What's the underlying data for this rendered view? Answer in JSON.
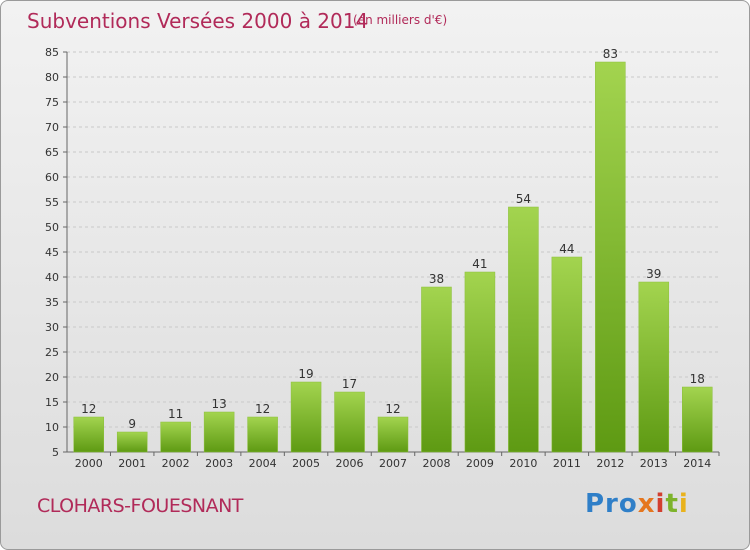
{
  "header": {
    "title": "Subventions Versées 2000 à 2014",
    "unit": "(en milliers d'€)"
  },
  "footer": {
    "commune": "CLOHARS-FOUESNANT",
    "logo": [
      "Pro",
      "x",
      "i",
      "t",
      "i"
    ]
  },
  "colors": {
    "title": "#b12a59",
    "bar_light": "#a3d44f",
    "bar_dark": "#5e9a13",
    "grid": "#c9c9c9"
  },
  "chart_data": {
    "type": "bar",
    "title": "Subventions Versées 2000 à 2014",
    "unit": "(en milliers d'€)",
    "categories": [
      "2000",
      "2001",
      "2002",
      "2003",
      "2004",
      "2005",
      "2006",
      "2007",
      "2008",
      "2009",
      "2010",
      "2011",
      "2012",
      "2013",
      "2014"
    ],
    "values": [
      12,
      9,
      11,
      13,
      12,
      19,
      17,
      12,
      38,
      41,
      54,
      44,
      83,
      39,
      18
    ],
    "ylim": [
      5,
      85
    ],
    "yticks": [
      5,
      10,
      15,
      20,
      25,
      30,
      35,
      40,
      45,
      50,
      55,
      60,
      65,
      70,
      75,
      80,
      85
    ],
    "grid": true,
    "data_labels": true
  }
}
